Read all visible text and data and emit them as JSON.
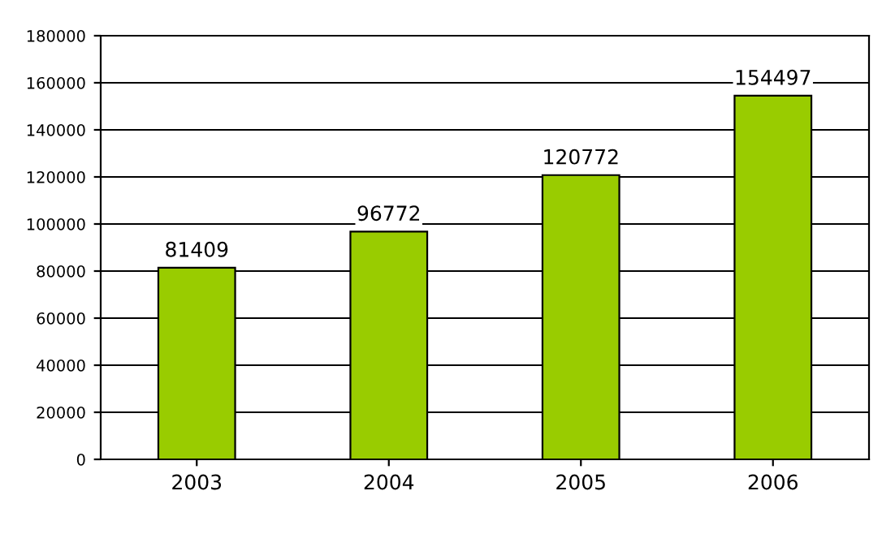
{
  "chart_data": {
    "type": "bar",
    "categories": [
      "2003",
      "2004",
      "2005",
      "2006"
    ],
    "values": [
      81409,
      96772,
      120772,
      154497
    ],
    "color": "#99cc00",
    "ylim": [
      0,
      180000
    ],
    "yticks": [
      0,
      20000,
      40000,
      60000,
      80000,
      100000,
      120000,
      140000,
      160000,
      180000
    ],
    "grid": "y",
    "data_labels": true
  }
}
